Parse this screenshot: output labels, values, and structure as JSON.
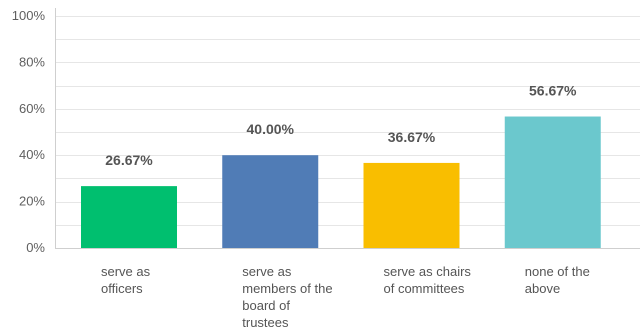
{
  "chart_data": {
    "type": "bar",
    "categories": [
      "serve as officers",
      "serve as members of the board of trustees",
      "serve as chairs of committees",
      "none of the above"
    ],
    "category_lines": [
      [
        "serve as",
        "officers"
      ],
      [
        "serve as",
        "members of the",
        "board of",
        "trustees"
      ],
      [
        "serve as chairs",
        "of committees"
      ],
      [
        "none of the",
        "above"
      ]
    ],
    "values": [
      26.67,
      40.0,
      36.67,
      56.67
    ],
    "data_labels": [
      "26.67%",
      "40.00%",
      "36.67%",
      "56.67%"
    ],
    "colors": [
      "#00bf6f",
      "#507cb6",
      "#f9be00",
      "#6bc8cd"
    ],
    "ylim": [
      0,
      100
    ],
    "yticks": [
      {
        "value": 0,
        "label": "0%"
      },
      {
        "value": 20,
        "label": "20%"
      },
      {
        "value": 40,
        "label": "40%"
      },
      {
        "value": 60,
        "label": "60%"
      },
      {
        "value": 80,
        "label": "80%"
      },
      {
        "value": 100,
        "label": "100%"
      }
    ],
    "grid": true,
    "title": "",
    "xlabel": "",
    "ylabel": ""
  }
}
